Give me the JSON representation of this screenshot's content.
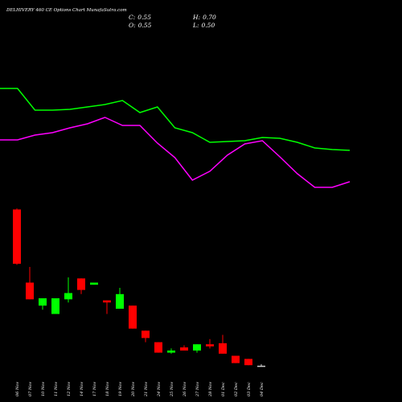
{
  "chart_data": [
    {
      "type": "line",
      "ylim": [
        0,
        15
      ],
      "series": [
        {
          "color": "#00ff00",
          "values": [
            14.0,
            14.0,
            11.3,
            11.3,
            11.4,
            11.7,
            12.0,
            12.5,
            11.0,
            11.7,
            9.1,
            8.5,
            7.3,
            7.4,
            7.5,
            7.9,
            7.8,
            7.3,
            6.6,
            6.4,
            6.3
          ]
        },
        {
          "color": "#ff00ff",
          "values": [
            7.6,
            7.6,
            8.2,
            8.5,
            9.1,
            9.6,
            10.4,
            9.4,
            9.4,
            7.2,
            5.4,
            2.6,
            3.7,
            5.7,
            7.1,
            7.5,
            5.5,
            3.4,
            1.7,
            1.7,
            2.4
          ]
        }
      ]
    },
    {
      "type": "candlestick",
      "title": "DELHIVERY 460  CE Options  Chart MunafaSutra.com",
      "header": [
        {
          "name": "C:",
          "label": "0.55"
        },
        {
          "name": "H:",
          "label": "0.70"
        },
        {
          "name": "O:",
          "label": "0.55"
        },
        {
          "name": "L:",
          "label": "0.50"
        }
      ],
      "ylim": [
        0,
        20
      ],
      "up_color": "#00ff00",
      "down_color": "#ff0000",
      "flat_color": "#cccccc",
      "categories": [
        "06 Nov",
        "07 Nov",
        "10 Nov",
        "11 Nov",
        "12 Nov",
        "14 Nov",
        "17 Nov",
        "18 Nov",
        "19 Nov",
        "20 Nov",
        "21 Nov",
        "24 Nov",
        "25 Nov",
        "26 Nov",
        "27 Nov",
        "28 Nov",
        "01 Dec",
        "02 Dec",
        "03 Dec",
        "04 Dec"
      ],
      "open": [
        15.5,
        8.5,
        6.3,
        5.5,
        6.9,
        8.9,
        8.3,
        6.8,
        6.0,
        6.3,
        3.9,
        2.8,
        1.8,
        2.3,
        2.0,
        2.6,
        2.7,
        1.5,
        1.2,
        0.55
      ],
      "high": [
        15.6,
        10.0,
        7.0,
        7.0,
        9.0,
        8.9,
        8.5,
        6.8,
        8.0,
        6.3,
        3.9,
        2.8,
        2.2,
        2.5,
        2.6,
        3.1,
        3.5,
        1.5,
        1.2,
        0.7
      ],
      "low": [
        10.2,
        6.9,
        5.9,
        5.5,
        6.6,
        7.4,
        8.3,
        5.5,
        6.0,
        4.1,
        2.8,
        1.8,
        1.7,
        2.0,
        1.8,
        2.2,
        1.7,
        0.8,
        0.6,
        0.5
      ],
      "close": [
        10.3,
        6.9,
        7.0,
        7.0,
        7.5,
        7.8,
        8.5,
        6.6,
        7.4,
        4.1,
        3.2,
        1.8,
        2.0,
        2.0,
        2.6,
        2.4,
        1.7,
        0.8,
        0.6,
        0.55
      ]
    }
  ]
}
